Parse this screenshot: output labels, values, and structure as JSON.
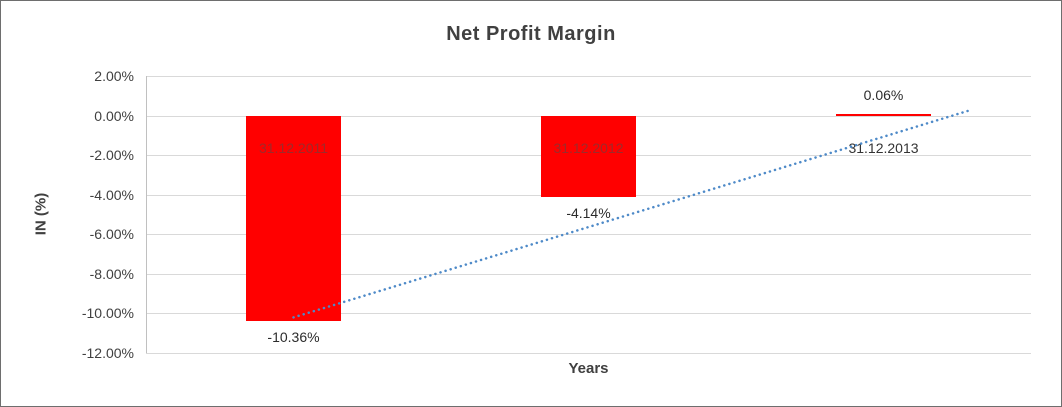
{
  "chart_data": {
    "type": "bar",
    "title": "Net Profit Margin",
    "xlabel": "Years",
    "ylabel": "IN (%)",
    "categories": [
      "31.12.2011",
      "31.12.2012",
      "31.12.2013"
    ],
    "values": [
      -10.36,
      -4.14,
      0.06
    ],
    "value_labels": [
      "-10.36%",
      "-4.14%",
      "0.06%"
    ],
    "ylim": [
      -12,
      2
    ],
    "y_ticks": [
      2,
      0,
      -2,
      -4,
      -6,
      -8,
      -10,
      -12
    ],
    "y_tick_labels": [
      "2.00%",
      "0.00%",
      "-2.00%",
      "-4.00%",
      "-6.00%",
      "-8.00%",
      "-10.00%",
      "-12.00%"
    ],
    "grid": true,
    "legend": false,
    "colors": {
      "bar": "#FF0000",
      "grid": "#D9D9D9",
      "axis_line": "#C0C0C0",
      "axis_text": "#404040",
      "title_text": "#404040",
      "value_label": "#2B2B2B",
      "trendline": "#4E8AC8"
    },
    "category_label_colors": [
      "#9E2A2A",
      "#9E2A2A",
      "#333333"
    ],
    "trendline": {
      "type": "linear",
      "style": "dotted",
      "start": {
        "index": 0,
        "value": -10.2
      },
      "end": {
        "index": 2.3,
        "value": 0.3
      }
    }
  }
}
